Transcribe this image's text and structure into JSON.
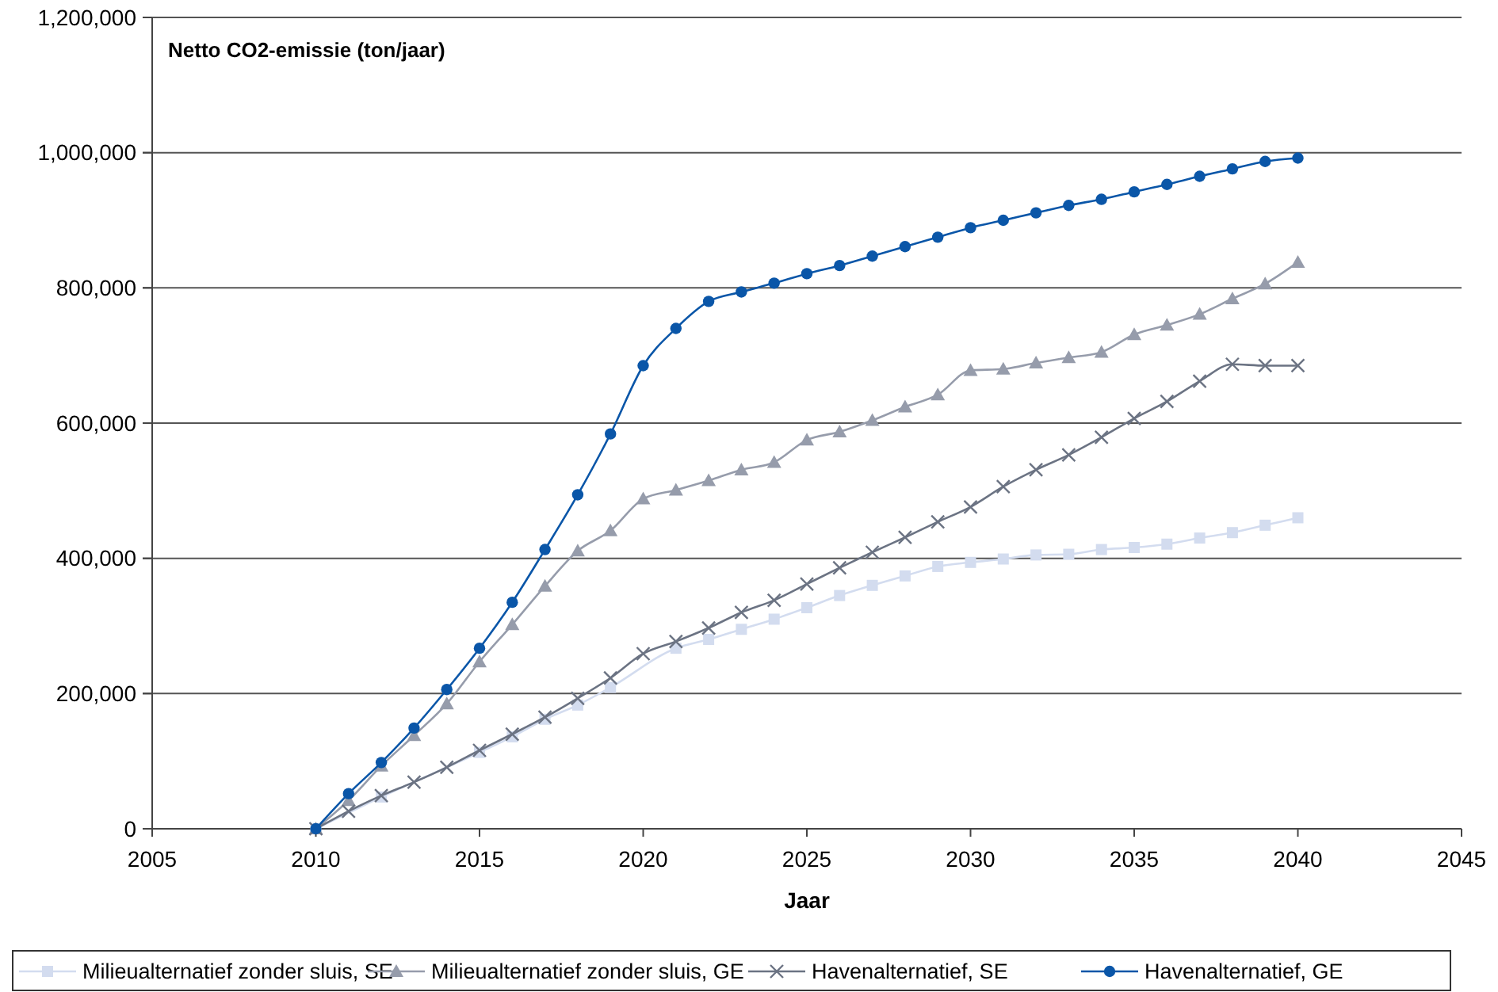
{
  "chart_data": {
    "type": "line",
    "title": "Netto CO2-emissie (ton/jaar)",
    "xlabel": "Jaar",
    "x": [
      2010,
      2011,
      2012,
      2013,
      2014,
      2015,
      2016,
      2017,
      2018,
      2019,
      2020,
      2021,
      2022,
      2023,
      2024,
      2025,
      2026,
      2027,
      2028,
      2029,
      2030,
      2031,
      2032,
      2033,
      2034,
      2035,
      2036,
      2037,
      2038,
      2039,
      2040
    ],
    "series": [
      {
        "name": "Milieualternatief zonder sluis, SE",
        "color": "#d3dcef",
        "marker": "square",
        "values": [
          0,
          null,
          47000,
          null,
          null,
          113000,
          136000,
          162000,
          183000,
          209000,
          null,
          267000,
          280000,
          295000,
          310000,
          327000,
          345000,
          360000,
          374000,
          388000,
          394000,
          399000,
          405000,
          406000,
          413000,
          416000,
          421000,
          430000,
          438000,
          449000,
          460000
        ]
      },
      {
        "name": "Milieualternatief zonder sluis, GE",
        "color": "#969cab",
        "marker": "triangle",
        "values": [
          0,
          42000,
          93000,
          138000,
          185000,
          247000,
          302000,
          359000,
          411000,
          441000,
          488000,
          501000,
          515000,
          531000,
          542000,
          575000,
          587000,
          604000,
          624000,
          642000,
          678000,
          680000,
          689000,
          697000,
          705000,
          731000,
          745000,
          761000,
          784000,
          806000,
          838000
        ]
      },
      {
        "name": "Havenalternatief, SE",
        "color": "#6b7383",
        "marker": "cross",
        "values": [
          0,
          26000,
          49000,
          69000,
          91000,
          116000,
          140000,
          165000,
          193000,
          223000,
          259000,
          277000,
          297000,
          320000,
          338000,
          362000,
          386000,
          409000,
          431000,
          454000,
          476000,
          506000,
          531000,
          553000,
          579000,
          607000,
          632000,
          662000,
          687000,
          685000,
          685000
        ]
      },
      {
        "name": "Havenalternatief, GE",
        "color": "#0a56a8",
        "marker": "circle",
        "values": [
          0,
          52000,
          98000,
          149000,
          206000,
          267000,
          335000,
          413000,
          494000,
          584000,
          685000,
          740000,
          780000,
          794000,
          807000,
          821000,
          833000,
          847000,
          861000,
          875000,
          889000,
          900000,
          911000,
          922000,
          931000,
          942000,
          953000,
          965000,
          976000,
          987000,
          992000
        ]
      }
    ],
    "xlim": [
      2005,
      2045
    ],
    "xticks": [
      2005,
      2010,
      2015,
      2020,
      2025,
      2030,
      2035,
      2040,
      2045
    ],
    "ylim": [
      0,
      1200000
    ],
    "yticks": [
      {
        "value": 0,
        "label": "0"
      },
      {
        "value": 200000,
        "label": "200,000"
      },
      {
        "value": 400000,
        "label": "400,000"
      },
      {
        "value": 600000,
        "label": "600,000"
      },
      {
        "value": 800000,
        "label": "800,000"
      },
      {
        "value": 1000000,
        "label": "1,000,000"
      },
      {
        "value": 1200000,
        "label": "1,200,000"
      }
    ],
    "grid": "y",
    "legend": "bottom",
    "line_style": "solid"
  }
}
